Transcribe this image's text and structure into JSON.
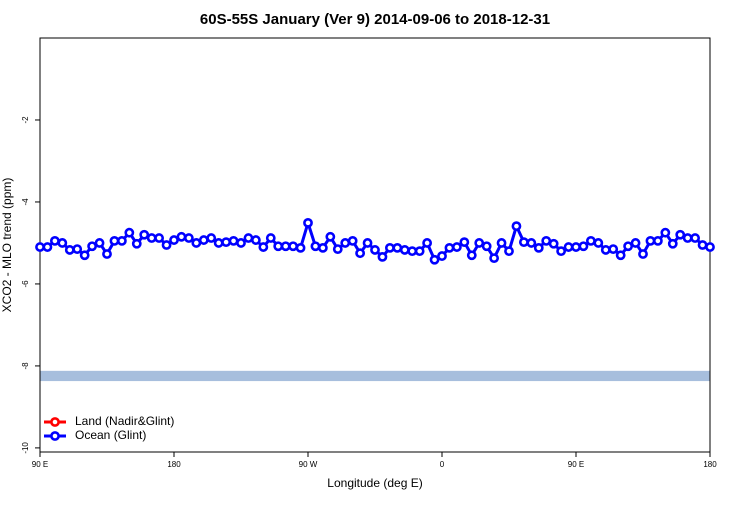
{
  "chart_data": {
    "type": "line",
    "title": "60S-55S January (Ver 9)   2014-09-06 to 2018-12-31",
    "x_label": "Longitude (deg E)",
    "y_label": "XCO2 - MLO trend (ppm)",
    "xlim": [
      90,
      540
    ],
    "ylim": [
      -10.1,
      0
    ],
    "xticks": [
      {
        "value": 90,
        "label": "90 E"
      },
      180,
      {
        "value": 270,
        "label": "90 W"
      },
      {
        "value": 360,
        "label": "0"
      },
      {
        "value": 450,
        "label": "90 E"
      },
      {
        "value": 540,
        "label": "180"
      }
    ],
    "yticks": [
      -10,
      -8,
      -6,
      -4,
      -2
    ],
    "legend": "bottom-left",
    "band": {
      "range": [
        -8.37,
        -8.12
      ],
      "color": "#a7bedd"
    },
    "x": [
      90,
      95,
      100,
      105,
      110,
      115,
      120,
      125,
      130,
      135,
      140,
      145,
      150,
      155,
      160,
      165,
      170,
      175,
      180,
      185,
      190,
      195,
      200,
      205,
      210,
      215,
      220,
      225,
      230,
      235,
      240,
      245,
      250,
      255,
      260,
      265,
      270,
      275,
      280,
      285,
      290,
      295,
      300,
      305,
      310,
      315,
      320,
      325,
      330,
      335,
      340,
      345,
      350,
      355,
      360,
      365,
      370,
      375,
      380,
      385,
      390,
      395,
      400,
      405,
      410,
      415,
      420,
      425,
      430,
      435,
      440,
      445,
      450,
      455,
      460,
      465,
      470,
      475,
      480,
      485,
      490,
      495,
      500,
      505,
      510,
      515,
      520,
      525,
      530,
      535,
      540
    ],
    "series": [
      {
        "name": "Land (Nadir&Glint)",
        "color": "#ff0000",
        "values": [
          null,
          null,
          null,
          null,
          null,
          null,
          null,
          null,
          null,
          null,
          null,
          null,
          null,
          null,
          null,
          null,
          null,
          null,
          null,
          null,
          null,
          null,
          null,
          null,
          null,
          null,
          null,
          null,
          null,
          null,
          null,
          null,
          null,
          null,
          null,
          null,
          null,
          null,
          null,
          null,
          null,
          null,
          null,
          null,
          null,
          null,
          null,
          null,
          null,
          null,
          null,
          null,
          null,
          null,
          null,
          null,
          null,
          null,
          null,
          null,
          null,
          null,
          null,
          null,
          null,
          null,
          null,
          null,
          null,
          null,
          null,
          null,
          null,
          null,
          null,
          null,
          null,
          null,
          null,
          null,
          null,
          null,
          null,
          null,
          null,
          null,
          null,
          null,
          null,
          null,
          null
        ]
      },
      {
        "name": "Ocean (Glint)",
        "color": "#0000ff",
        "values": [
          -5.1,
          -5.1,
          -4.95,
          -5.0,
          -5.17,
          -5.15,
          -5.3,
          -5.08,
          -5.0,
          -5.27,
          -4.95,
          -4.95,
          -4.75,
          -5.02,
          -4.8,
          -4.88,
          -4.88,
          -5.05,
          -4.93,
          -4.85,
          -4.88,
          -5.0,
          -4.93,
          -4.88,
          -5.0,
          -4.98,
          -4.95,
          -5.0,
          -4.88,
          -4.93,
          -5.1,
          -4.88,
          -5.08,
          -5.08,
          -5.08,
          -5.12,
          -4.51,
          -5.08,
          -5.12,
          -4.85,
          -5.15,
          -5.0,
          -4.95,
          -5.25,
          -5.0,
          -5.17,
          -5.34,
          -5.12,
          -5.12,
          -5.17,
          -5.2,
          -5.2,
          -5.0,
          -5.41,
          -5.32,
          -5.12,
          -5.1,
          -4.98,
          -5.3,
          -5.0,
          -5.08,
          -5.37,
          -5.0,
          -5.2,
          -4.59,
          -4.98,
          -5.0,
          -5.12,
          -4.95,
          -5.02,
          -5.2,
          -5.1,
          -5.1,
          -5.08,
          -4.95,
          -5.0,
          -5.17,
          -5.15,
          -5.3,
          -5.08,
          -5.0,
          -5.27,
          -4.95,
          -4.95,
          -4.75,
          -5.02,
          -4.8,
          -4.88,
          -4.88,
          -5.05,
          -5.1
        ]
      }
    ]
  }
}
